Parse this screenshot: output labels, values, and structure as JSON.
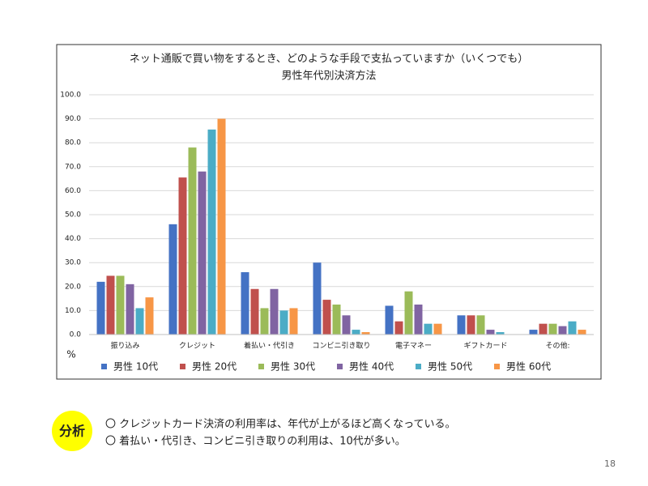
{
  "chart_data": {
    "type": "bar",
    "title": "ネット通販で買い物をするとき、どのような手段で支払っていますか（いくつでも）",
    "subtitle": "男性年代別決済方法",
    "y_label": "%",
    "categories": [
      "振り込み",
      "クレジット",
      "着払い・代引き",
      "コンビニ引き取り",
      "電子マネー",
      "ギフトカード",
      "その他:"
    ],
    "series": [
      {
        "name": "男性 10代",
        "color": "#4472c4",
        "values": [
          22,
          46,
          26,
          30,
          12,
          8,
          2
        ]
      },
      {
        "name": "男性 20代",
        "color": "#c0504d",
        "values": [
          24.5,
          65.5,
          19,
          14.5,
          5.5,
          8,
          4.5
        ]
      },
      {
        "name": "男性 30代",
        "color": "#9bbb59",
        "values": [
          24.5,
          78,
          11,
          12.5,
          18,
          8,
          4.5
        ]
      },
      {
        "name": "男性 40代",
        "color": "#8064a2",
        "values": [
          21,
          68,
          19,
          8,
          12.5,
          2,
          3.5
        ]
      },
      {
        "name": "男性 50代",
        "color": "#4bacc6",
        "values": [
          11,
          85.5,
          10,
          2,
          4.5,
          1,
          5.5
        ]
      },
      {
        "name": "男性 60代",
        "color": "#f79646",
        "values": [
          15.5,
          90,
          11,
          1,
          4.5,
          0,
          2
        ]
      }
    ],
    "ylim": [
      0,
      100
    ],
    "yticks": [
      {
        "value": 0,
        "label": "0.0"
      },
      {
        "value": 10,
        "label": "10.0"
      },
      {
        "value": 20,
        "label": "20.0"
      },
      {
        "value": 30,
        "label": "30.0"
      },
      {
        "value": 40,
        "label": "40.0"
      },
      {
        "value": 50,
        "label": "50.0"
      },
      {
        "value": 60,
        "label": "60.0"
      },
      {
        "value": 70,
        "label": "70.0"
      },
      {
        "value": 80,
        "label": "80.0"
      },
      {
        "value": 90,
        "label": "90.0"
      },
      {
        "value": 100,
        "label": "100.0"
      }
    ],
    "grid": true,
    "legend": "bottom"
  },
  "analysis": {
    "label": "分析",
    "notes": [
      "〇 クレジットカード決済の利用率は、年代が上がるほど高くなっている。",
      "〇 着払い・代引き、コンビニ引き取りの利用は、10代が多い。"
    ]
  },
  "page_number": "18"
}
